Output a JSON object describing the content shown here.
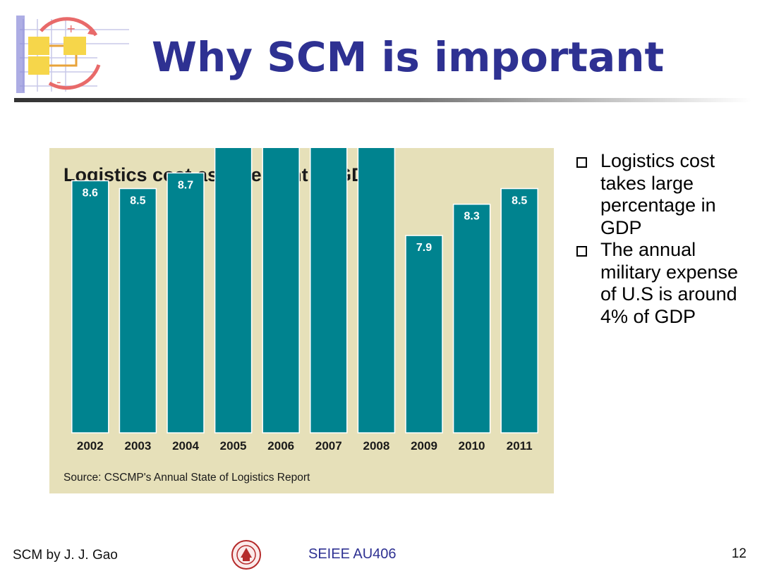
{
  "slide": {
    "title": "Why SCM is important",
    "bullets": [
      "Logistics cost takes large percentage in GDP",
      "The annual military expense of U.S is around 4% of GDP"
    ],
    "footer": {
      "author": "SCM by J. J. Gao",
      "course": "SEIEE AU406",
      "page_number": "12"
    },
    "colors": {
      "title": "#2e3192",
      "bar": "#00838f",
      "panel": "#e6e0b9"
    }
  },
  "chart_data": {
    "type": "bar",
    "title": "Logistics cost as a percent of GDP",
    "source": "Source: CSCMP's Annual State of Logistics Report",
    "categories": [
      "2002",
      "2003",
      "2004",
      "2005",
      "2006",
      "2007",
      "2008",
      "2009",
      "2010",
      "2011"
    ],
    "values": [
      8.6,
      8.5,
      8.7,
      9.3,
      9.8,
      9.9,
      9.4,
      7.9,
      8.3,
      8.5
    ],
    "ylim": [
      0,
      10
    ],
    "grid": false,
    "legend": "none",
    "data_labels": true
  }
}
